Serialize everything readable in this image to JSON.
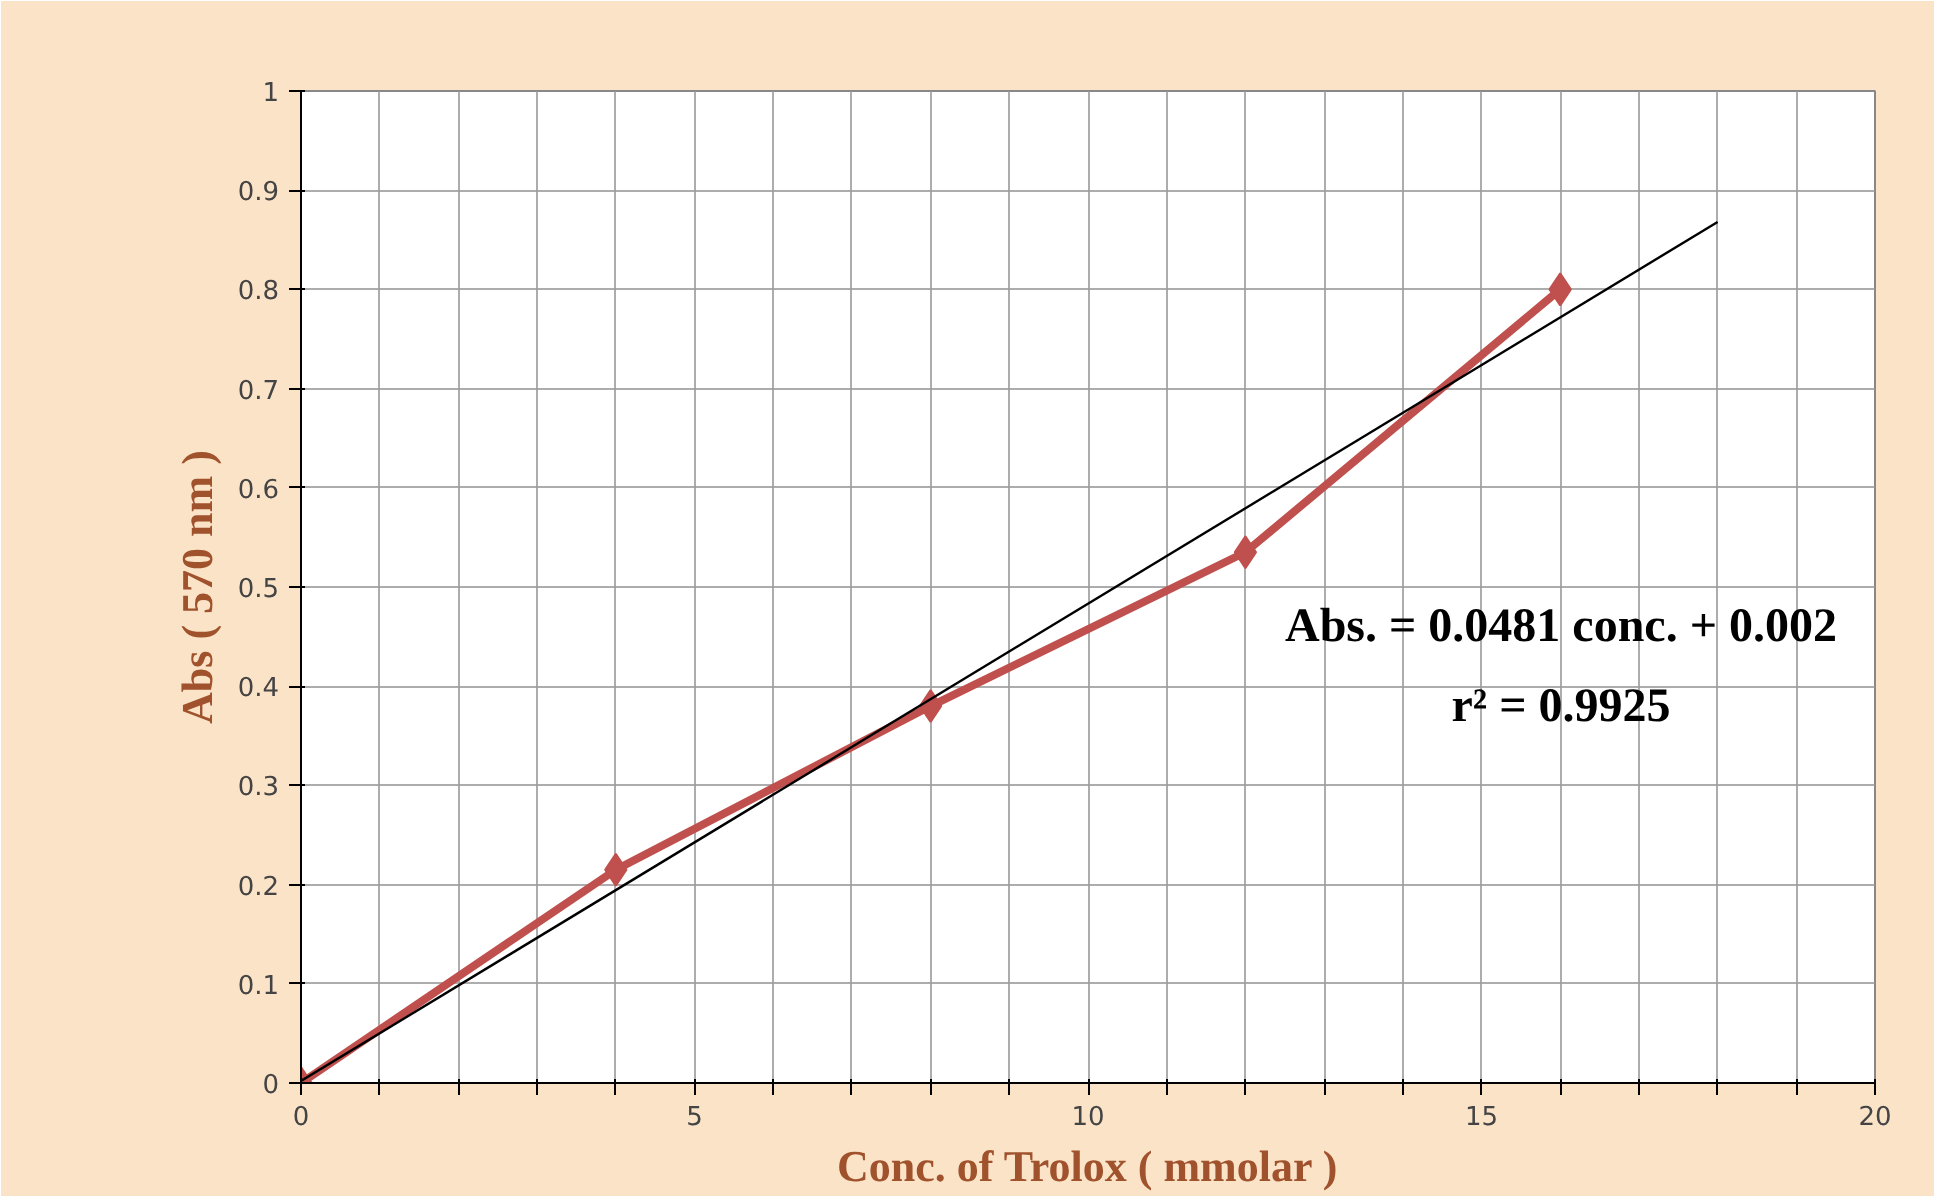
{
  "chart_data": {
    "type": "line",
    "xlabel": "Conc. of Trolox ( mmolar )",
    "ylabel": "Abs ( 570 nm )",
    "xlim": [
      0,
      20
    ],
    "ylim": [
      0,
      1
    ],
    "xticks": [
      0,
      {
        "value": 1,
        "label": null
      },
      {
        "value": 2,
        "label": null
      },
      {
        "value": 3,
        "label": null
      },
      {
        "value": 4,
        "label": null
      },
      5,
      {
        "value": 6,
        "label": null
      },
      {
        "value": 7,
        "label": null
      },
      {
        "value": 8,
        "label": null
      },
      {
        "value": 9,
        "label": null
      },
      10,
      {
        "value": 11,
        "label": null
      },
      {
        "value": 12,
        "label": null
      },
      {
        "value": 13,
        "label": null
      },
      {
        "value": 14,
        "label": null
      },
      15,
      {
        "value": 16,
        "label": null
      },
      {
        "value": 17,
        "label": null
      },
      {
        "value": 18,
        "label": null
      },
      {
        "value": 19,
        "label": null
      },
      20
    ],
    "yticks": [
      0,
      0.1,
      0.2,
      0.3,
      0.4,
      0.5,
      0.6,
      0.7,
      0.8,
      0.9,
      1
    ],
    "grid": true,
    "series": [
      {
        "color": "#c0504d",
        "x": [
          0,
          4,
          8,
          12,
          16
        ],
        "values": [
          0,
          0.215,
          0.38,
          0.535,
          0.8
        ],
        "marker": "diamond"
      },
      {
        "color": "#000000",
        "x": [
          0,
          18
        ],
        "values": [
          0.002,
          0.868
        ],
        "marker": "none"
      }
    ],
    "annotations": [
      "Abs. = 0.0481 conc. + 0.002",
      "r² = 0.9925"
    ]
  }
}
